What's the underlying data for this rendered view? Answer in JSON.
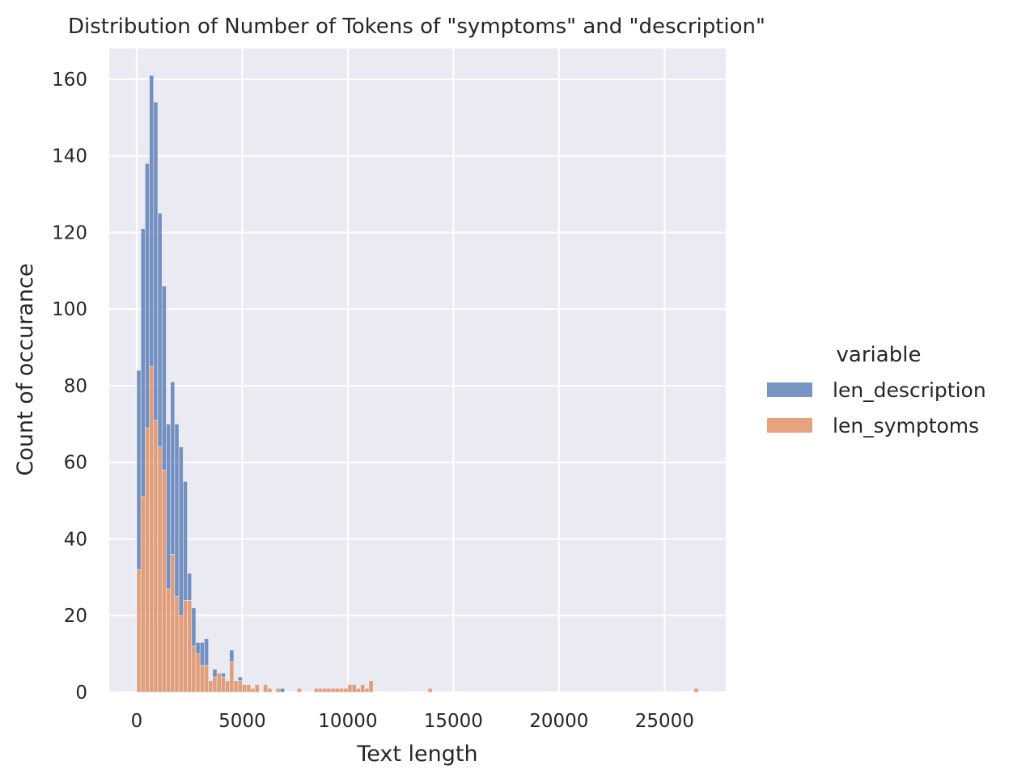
{
  "chart_data": {
    "type": "bar",
    "title": "Distribution of Number of Tokens of \"symptoms\" and \"description\"",
    "xlabel": "Text length",
    "ylabel": "Count of occurance",
    "xlim": [
      -1300,
      27900
    ],
    "ylim": [
      0,
      168
    ],
    "x_ticks": [
      0,
      5000,
      10000,
      15000,
      20000,
      25000
    ],
    "y_ticks": [
      0,
      20,
      40,
      60,
      80,
      100,
      120,
      140,
      160
    ],
    "grid": true,
    "stacked": true,
    "bin_width": 200,
    "legend": {
      "title": "variable",
      "placement": "right"
    },
    "series": [
      {
        "name": "len_symptoms",
        "color": "#DD8452",
        "bins": [
          {
            "x": 0,
            "y": 32
          },
          {
            "x": 200,
            "y": 51
          },
          {
            "x": 400,
            "y": 69
          },
          {
            "x": 600,
            "y": 85
          },
          {
            "x": 800,
            "y": 71
          },
          {
            "x": 1000,
            "y": 64
          },
          {
            "x": 1200,
            "y": 58
          },
          {
            "x": 1400,
            "y": 27
          },
          {
            "x": 1600,
            "y": 36
          },
          {
            "x": 1800,
            "y": 25
          },
          {
            "x": 2000,
            "y": 20
          },
          {
            "x": 2200,
            "y": 24
          },
          {
            "x": 2400,
            "y": 24
          },
          {
            "x": 2600,
            "y": 12
          },
          {
            "x": 2800,
            "y": 10
          },
          {
            "x": 3000,
            "y": 7
          },
          {
            "x": 3200,
            "y": 7
          },
          {
            "x": 3400,
            "y": 3
          },
          {
            "x": 3600,
            "y": 4
          },
          {
            "x": 3800,
            "y": 5
          },
          {
            "x": 4000,
            "y": 4
          },
          {
            "x": 4200,
            "y": 3
          },
          {
            "x": 4400,
            "y": 8
          },
          {
            "x": 4600,
            "y": 3
          },
          {
            "x": 4800,
            "y": 3
          },
          {
            "x": 5000,
            "y": 2
          },
          {
            "x": 5200,
            "y": 2
          },
          {
            "x": 5400,
            "y": 1
          },
          {
            "x": 5600,
            "y": 2
          },
          {
            "x": 6000,
            "y": 2
          },
          {
            "x": 6200,
            "y": 1
          },
          {
            "x": 6600,
            "y": 1
          },
          {
            "x": 7600,
            "y": 1
          },
          {
            "x": 8400,
            "y": 1
          },
          {
            "x": 8600,
            "y": 1
          },
          {
            "x": 8800,
            "y": 1
          },
          {
            "x": 9000,
            "y": 1
          },
          {
            "x": 9200,
            "y": 1
          },
          {
            "x": 9400,
            "y": 1
          },
          {
            "x": 9600,
            "y": 1
          },
          {
            "x": 9800,
            "y": 1
          },
          {
            "x": 10000,
            "y": 2
          },
          {
            "x": 10200,
            "y": 2
          },
          {
            "x": 10400,
            "y": 1
          },
          {
            "x": 10600,
            "y": 2
          },
          {
            "x": 10800,
            "y": 1
          },
          {
            "x": 11000,
            "y": 3
          },
          {
            "x": 13800,
            "y": 1
          },
          {
            "x": 26400,
            "y": 1
          }
        ]
      },
      {
        "name": "len_description",
        "color": "#4C72B0",
        "bins": [
          {
            "x": 0,
            "y": 52
          },
          {
            "x": 200,
            "y": 70
          },
          {
            "x": 400,
            "y": 69
          },
          {
            "x": 600,
            "y": 76
          },
          {
            "x": 800,
            "y": 83
          },
          {
            "x": 1000,
            "y": 61
          },
          {
            "x": 1200,
            "y": 48
          },
          {
            "x": 1400,
            "y": 43
          },
          {
            "x": 1600,
            "y": 45
          },
          {
            "x": 1800,
            "y": 45
          },
          {
            "x": 2000,
            "y": 44
          },
          {
            "x": 2200,
            "y": 31
          },
          {
            "x": 2400,
            "y": 7
          },
          {
            "x": 2600,
            "y": 10
          },
          {
            "x": 2800,
            "y": 3
          },
          {
            "x": 3000,
            "y": 6
          },
          {
            "x": 3200,
            "y": 7
          },
          {
            "x": 3600,
            "y": 2
          },
          {
            "x": 4000,
            "y": 1
          },
          {
            "x": 4400,
            "y": 3
          },
          {
            "x": 4800,
            "y": 1
          },
          {
            "x": 6800,
            "y": 1
          }
        ]
      }
    ]
  }
}
